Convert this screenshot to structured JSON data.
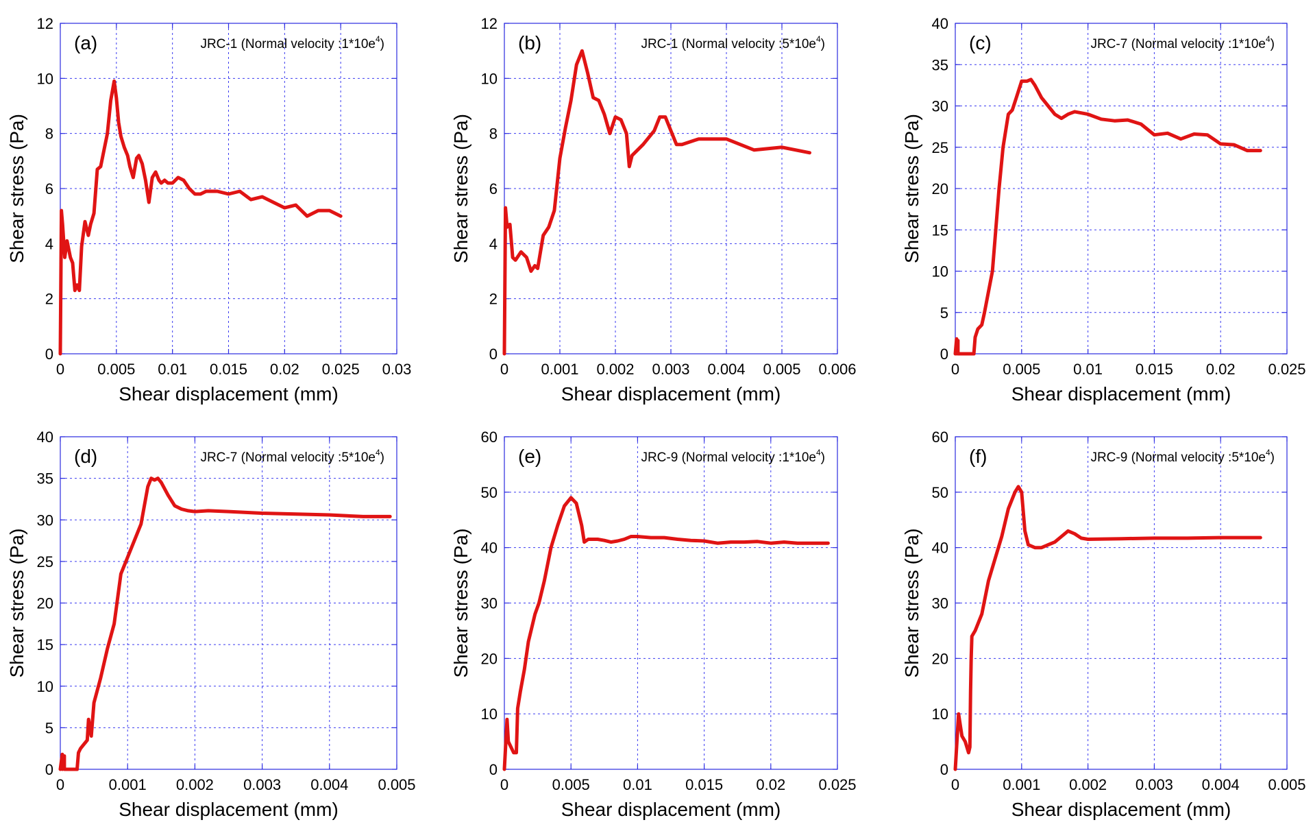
{
  "figure": {
    "line_color": "#e01414",
    "frame_color": "#2a2ae0",
    "grid_color": "#3a3af0"
  },
  "chart_data": [
    {
      "type": "line",
      "panel_label": "(a)",
      "annotation_prefix": "JRC-1 (Normal velocity :1*10e",
      "annotation_sup": "4",
      "annotation_suffix": ")",
      "xlabel": "Shear displacement (mm)",
      "ylabel": "Shear stress (Pa)",
      "xlim": [
        0,
        0.03
      ],
      "ylim": [
        0,
        12
      ],
      "xticks": [
        0,
        0.005,
        0.01,
        0.015,
        0.02,
        0.025,
        0.03
      ],
      "xtick_labels": [
        "0",
        "0.005",
        "0.01",
        "0.015",
        "0.02",
        "0.025",
        "0.03"
      ],
      "yticks": [
        0,
        2,
        4,
        6,
        8,
        10,
        12
      ],
      "ytick_labels": [
        "0",
        "2",
        "4",
        "6",
        "8",
        "10",
        "12"
      ],
      "series": [
        {
          "name": "JRC-1 1*10e4",
          "x": [
            0,
            0.0001,
            0.0002,
            0.0004,
            0.0006,
            0.0009,
            0.0011,
            0.0013,
            0.0015,
            0.0017,
            0.0019,
            0.0022,
            0.0025,
            0.0027,
            0.003,
            0.0033,
            0.0036,
            0.0039,
            0.0042,
            0.0045,
            0.0048,
            0.005,
            0.0052,
            0.0054,
            0.0057,
            0.006,
            0.0062,
            0.0065,
            0.0068,
            0.007,
            0.0073,
            0.0076,
            0.0079,
            0.0082,
            0.0085,
            0.0088,
            0.009,
            0.0093,
            0.0096,
            0.01,
            0.0105,
            0.011,
            0.0115,
            0.012,
            0.0125,
            0.013,
            0.014,
            0.015,
            0.016,
            0.017,
            0.018,
            0.019,
            0.02,
            0.021,
            0.022,
            0.023,
            0.024,
            0.025
          ],
          "y": [
            0,
            5.2,
            4.7,
            3.5,
            4.1,
            3.5,
            3.3,
            2.3,
            2.5,
            2.3,
            3.9,
            4.8,
            4.3,
            4.7,
            5.1,
            6.7,
            6.8,
            7.4,
            8.0,
            9.2,
            9.9,
            9.3,
            8.4,
            7.9,
            7.5,
            7.2,
            6.8,
            6.4,
            7.1,
            7.2,
            6.9,
            6.3,
            5.5,
            6.4,
            6.6,
            6.3,
            6.2,
            6.3,
            6.2,
            6.2,
            6.4,
            6.3,
            6.0,
            5.8,
            5.8,
            5.9,
            5.9,
            5.8,
            5.9,
            5.6,
            5.7,
            5.5,
            5.3,
            5.4,
            5.0,
            5.2,
            5.2,
            5.0
          ]
        }
      ]
    },
    {
      "type": "line",
      "panel_label": "(b)",
      "annotation_prefix": "JRC-1 (Normal velocity :5*10e",
      "annotation_sup": "4",
      "annotation_suffix": ")",
      "xlabel": "Shear displacement (mm)",
      "ylabel": "Shear stress (Pa)",
      "xlim": [
        0,
        0.006
      ],
      "ylim": [
        0,
        12
      ],
      "xticks": [
        0,
        0.001,
        0.002,
        0.003,
        0.004,
        0.005,
        0.006
      ],
      "xtick_labels": [
        "0",
        "0.001",
        "0.002",
        "0.003",
        "0.004",
        "0.005",
        "0.006"
      ],
      "yticks": [
        0,
        2,
        4,
        6,
        8,
        10,
        12
      ],
      "ytick_labels": [
        "0",
        "2",
        "4",
        "6",
        "8",
        "10",
        "12"
      ],
      "series": [
        {
          "name": "JRC-1 5*10e4",
          "x": [
            0,
            2e-05,
            5e-05,
            0.0001,
            0.00015,
            0.0002,
            0.0003,
            0.0004,
            0.00048,
            0.00055,
            0.0006,
            0.0007,
            0.0008,
            0.0009,
            0.001,
            0.0011,
            0.0012,
            0.0013,
            0.0014,
            0.0015,
            0.0016,
            0.0017,
            0.0018,
            0.0019,
            0.002,
            0.0021,
            0.0022,
            0.00225,
            0.0023,
            0.0025,
            0.0027,
            0.0028,
            0.0029,
            0.003,
            0.0031,
            0.0032,
            0.0035,
            0.004,
            0.0045,
            0.005,
            0.0055
          ],
          "y": [
            0,
            5.3,
            4.6,
            4.7,
            3.5,
            3.4,
            3.7,
            3.5,
            3.0,
            3.2,
            3.1,
            4.3,
            4.6,
            5.2,
            7.1,
            8.2,
            9.2,
            10.5,
            11.0,
            10.2,
            9.3,
            9.2,
            8.7,
            8.0,
            8.6,
            8.5,
            8.0,
            6.8,
            7.2,
            7.6,
            8.1,
            8.6,
            8.6,
            8.1,
            7.6,
            7.6,
            7.8,
            7.8,
            7.4,
            7.5,
            7.3
          ]
        }
      ]
    },
    {
      "type": "line",
      "panel_label": "(c)",
      "annotation_prefix": "JRC-7 (Normal velocity :1*10e",
      "annotation_sup": "4",
      "annotation_suffix": ")",
      "xlabel": "Shear displacement (mm)",
      "ylabel": "Shear stress (Pa)",
      "xlim": [
        0,
        0.025
      ],
      "ylim": [
        0,
        40
      ],
      "xticks": [
        0,
        0.005,
        0.01,
        0.015,
        0.02,
        0.025
      ],
      "xtick_labels": [
        "0",
        "0.005",
        "0.01",
        "0.015",
        "0.02",
        "0.025"
      ],
      "yticks": [
        0,
        5,
        10,
        15,
        20,
        25,
        30,
        35,
        40
      ],
      "ytick_labels": [
        "0",
        "5",
        "10",
        "15",
        "20",
        "25",
        "30",
        "35",
        "40"
      ],
      "series": [
        {
          "name": "JRC-7 1*10e4",
          "x": [
            0,
            0.0001,
            0.0001,
            0.0002,
            0.0002,
            0.0014,
            0.0015,
            0.0017,
            0.002,
            0.0022,
            0.0025,
            0.0028,
            0.003,
            0.0033,
            0.0036,
            0.004,
            0.0043,
            0.0046,
            0.005,
            0.0054,
            0.0057,
            0.006,
            0.0065,
            0.007,
            0.0075,
            0.008,
            0.0085,
            0.009,
            0.01,
            0.011,
            0.012,
            0.013,
            0.014,
            0.015,
            0.016,
            0.017,
            0.018,
            0.019,
            0.02,
            0.021,
            0.022,
            0.023
          ],
          "y": [
            0,
            1.8,
            0,
            1.6,
            0,
            0,
            2.0,
            3.0,
            3.5,
            5.0,
            7.5,
            10,
            14,
            20,
            25,
            29,
            29.5,
            31,
            33,
            33,
            33.2,
            32.5,
            31,
            30,
            29,
            28.5,
            29,
            29.3,
            29,
            28.4,
            28.2,
            28.3,
            27.8,
            26.5,
            26.7,
            26.0,
            26.6,
            26.5,
            25.4,
            25.3,
            24.6,
            24.6
          ]
        }
      ]
    },
    {
      "type": "line",
      "panel_label": "(d)",
      "annotation_prefix": "JRC-7 (Normal velocity :5*10e",
      "annotation_sup": "4",
      "annotation_suffix": ")",
      "xlabel": "Shear displacement (mm)",
      "ylabel": "Shear stress (Pa)",
      "xlim": [
        0,
        0.005
      ],
      "ylim": [
        0,
        40
      ],
      "xticks": [
        0,
        0.001,
        0.002,
        0.003,
        0.004,
        0.005
      ],
      "xtick_labels": [
        "0",
        "0.001",
        "0.002",
        "0.003",
        "0.004",
        "0.005"
      ],
      "yticks": [
        0,
        5,
        10,
        15,
        20,
        25,
        30,
        35,
        40
      ],
      "ytick_labels": [
        "0",
        "5",
        "10",
        "15",
        "20",
        "25",
        "30",
        "35",
        "40"
      ],
      "series": [
        {
          "name": "JRC-7 5*10e4",
          "x": [
            0,
            3e-05,
            3e-05,
            6e-05,
            6e-05,
            0.00025,
            0.00027,
            0.0003,
            0.00035,
            0.0004,
            0.00042,
            0.00044,
            0.00046,
            0.0005,
            0.0006,
            0.0007,
            0.0008,
            0.0009,
            0.001,
            0.0011,
            0.0012,
            0.0013,
            0.00135,
            0.0014,
            0.00145,
            0.0015,
            0.0016,
            0.0017,
            0.0018,
            0.0019,
            0.002,
            0.0022,
            0.0025,
            0.003,
            0.0035,
            0.004,
            0.0045,
            0.0049
          ],
          "y": [
            0,
            1.8,
            0,
            1.6,
            0,
            0,
            2.0,
            2.5,
            3.0,
            3.5,
            6.0,
            5.0,
            4.0,
            8.0,
            11,
            14.5,
            17.5,
            23.5,
            25.5,
            27.5,
            29.5,
            34,
            35,
            34.8,
            35,
            34.5,
            33,
            31.7,
            31.3,
            31.1,
            31.0,
            31.1,
            31.0,
            30.8,
            30.7,
            30.6,
            30.4,
            30.4
          ]
        }
      ]
    },
    {
      "type": "line",
      "panel_label": "(e)",
      "annotation_prefix": "JRC-9 (Normal velocity :1*10e",
      "annotation_sup": "4",
      "annotation_suffix": ")",
      "xlabel": "Shear displacement (mm)",
      "ylabel": "Shear stress (Pa)",
      "xlim": [
        0,
        0.025
      ],
      "ylim": [
        0,
        60
      ],
      "xticks": [
        0,
        0.005,
        0.01,
        0.015,
        0.02,
        0.025
      ],
      "xtick_labels": [
        "0",
        "0.005",
        "0.01",
        "0.015",
        "0.02",
        "0.025"
      ],
      "yticks": [
        0,
        10,
        20,
        30,
        40,
        50,
        60
      ],
      "ytick_labels": [
        "0",
        "10",
        "20",
        "30",
        "40",
        "50",
        "60"
      ],
      "series": [
        {
          "name": "JRC-9 1*10e4",
          "x": [
            0,
            0.0002,
            0.0003,
            0.0005,
            0.0007,
            0.0009,
            0.001,
            0.0012,
            0.0015,
            0.0018,
            0.002,
            0.0023,
            0.0026,
            0.003,
            0.0035,
            0.004,
            0.0045,
            0.005,
            0.0054,
            0.0058,
            0.006,
            0.0063,
            0.007,
            0.0075,
            0.008,
            0.0085,
            0.009,
            0.0095,
            0.01,
            0.011,
            0.012,
            0.013,
            0.014,
            0.015,
            0.016,
            0.017,
            0.018,
            0.019,
            0.02,
            0.021,
            0.022,
            0.023,
            0.0243
          ],
          "y": [
            0,
            9,
            5,
            4,
            3,
            3,
            11,
            14,
            18,
            23,
            25,
            28,
            30,
            34,
            40,
            44,
            47.5,
            49,
            48,
            44,
            41,
            41.5,
            41.5,
            41.3,
            41,
            41.2,
            41.5,
            42,
            42,
            41.8,
            41.8,
            41.5,
            41.3,
            41.2,
            40.8,
            41.0,
            41.0,
            41.1,
            40.8,
            41.0,
            40.8,
            40.8,
            40.8
          ]
        }
      ]
    },
    {
      "type": "line",
      "panel_label": "(f)",
      "annotation_prefix": "JRC-9 (Normal velocity :5*10e",
      "annotation_sup": "4",
      "annotation_suffix": ")",
      "xlabel": "Shear displacement (mm)",
      "ylabel": "Shear stress (Pa)",
      "xlim": [
        0,
        0.005
      ],
      "ylim": [
        0,
        60
      ],
      "xticks": [
        0,
        0.001,
        0.002,
        0.003,
        0.004,
        0.005
      ],
      "xtick_labels": [
        "0",
        "0.001",
        "0.002",
        "0.003",
        "0.004",
        "0.005"
      ],
      "yticks": [
        0,
        10,
        20,
        30,
        40,
        50,
        60
      ],
      "ytick_labels": [
        "0",
        "10",
        "20",
        "30",
        "40",
        "50",
        "60"
      ],
      "series": [
        {
          "name": "JRC-9 5*10e4",
          "x": [
            0,
            5e-05,
            0.0001,
            0.00015,
            0.0002,
            0.00022,
            0.00023,
            0.00024,
            0.00025,
            0.0003,
            0.0004,
            0.0005,
            0.0006,
            0.0007,
            0.0008,
            0.0009,
            0.00095,
            0.001,
            0.00105,
            0.0011,
            0.0012,
            0.0013,
            0.0014,
            0.0015,
            0.0016,
            0.0017,
            0.0018,
            0.0019,
            0.002,
            0.0025,
            0.003,
            0.0035,
            0.004,
            0.0046
          ],
          "y": [
            0,
            10,
            6,
            5,
            3,
            4,
            14,
            20,
            24,
            25,
            28,
            34,
            38,
            42,
            47,
            50,
            51,
            50,
            43,
            40.5,
            40,
            40,
            40.5,
            41,
            42,
            43,
            42.5,
            41.7,
            41.5,
            41.6,
            41.7,
            41.7,
            41.8,
            41.8
          ]
        }
      ]
    }
  ]
}
